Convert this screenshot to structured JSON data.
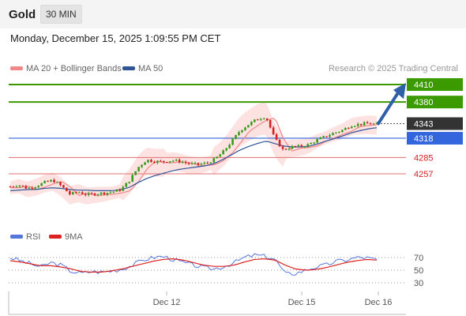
{
  "header": {
    "symbol": "Gold",
    "timeframe_button": "30 MIN"
  },
  "timestamp": "Monday, December 15, 2025 1:09:55 PM CET",
  "legend": [
    {
      "label": "MA 20 + Bollinger Bands",
      "color": "#f08888"
    },
    {
      "label": "MA 50",
      "color": "#2f5597"
    }
  ],
  "copyright": "Research © 2025 Trading Central",
  "rsi_legend": [
    {
      "label": "RSI",
      "color": "#5577dd"
    },
    {
      "label": "9MA",
      "color": "#dd2222"
    }
  ],
  "colors": {
    "resistance": "#3a9a00",
    "pivot": "#3366dd",
    "support": "#d42020",
    "last_price": "#333333",
    "bands_fill": "#fde2e2",
    "up_candle": "#3a9a1a",
    "down_candle": "#d42020",
    "arrow": "#2f5fa8"
  },
  "chart_data": {
    "type": "candlestick",
    "x_ticks": [
      "Dec 12",
      "Dec 15",
      "Dec 16"
    ],
    "levels": [
      {
        "value": 4410,
        "label": "4410",
        "kind": "resistance"
      },
      {
        "value": 4380,
        "label": "4380",
        "kind": "resistance"
      },
      {
        "value": 4343,
        "label": "4343",
        "kind": "last"
      },
      {
        "value": 4318,
        "label": "4318",
        "kind": "pivot"
      },
      {
        "value": 4285,
        "label": "4285",
        "kind": "support"
      },
      {
        "value": 4257,
        "label": "4257",
        "kind": "support"
      }
    ],
    "price_path": [
      4235,
      4238,
      4232,
      4236,
      4242,
      4246,
      4236,
      4222,
      4226,
      4221,
      4223,
      4224,
      4226,
      4230,
      4246,
      4268,
      4281,
      4278,
      4278,
      4280,
      4278,
      4274,
      4273,
      4275,
      4282,
      4295,
      4313,
      4332,
      4342,
      4351,
      4355,
      4318,
      4298,
      4303,
      4304,
      4307,
      4315,
      4321,
      4327,
      4332,
      4340,
      4342,
      4343,
      4342
    ],
    "ma50_path": [
      4228,
      4229,
      4230,
      4230,
      4232,
      4233,
      4232,
      4230,
      4229,
      4229,
      4228,
      4228,
      4228,
      4230,
      4234,
      4242,
      4249,
      4254,
      4258,
      4262,
      4265,
      4267,
      4269,
      4271,
      4275,
      4282,
      4290,
      4298,
      4304,
      4309,
      4313,
      4309,
      4305,
      4303,
      4303,
      4304,
      4308,
      4313,
      4317,
      4322,
      4327,
      4331,
      4334,
      4336
    ],
    "rsi": {
      "levels": [
        70,
        50,
        30
      ],
      "rsi_path": [
        70,
        65,
        60,
        55,
        62,
        58,
        48,
        45,
        48,
        47,
        49,
        52,
        58,
        66,
        70,
        72,
        67,
        62,
        58,
        54,
        52,
        56,
        62,
        70,
        74,
        72,
        68,
        44,
        45,
        50,
        55,
        58,
        64,
        66,
        70,
        70,
        66
      ],
      "ma_path": [
        65,
        63,
        60,
        57,
        57,
        55,
        52,
        48,
        47,
        47,
        49,
        52,
        56,
        60,
        64,
        67,
        68,
        66,
        62,
        58,
        56,
        56,
        58,
        63,
        67,
        68,
        66,
        58,
        52,
        50,
        51,
        54,
        58,
        62,
        65,
        67,
        66
      ]
    }
  }
}
